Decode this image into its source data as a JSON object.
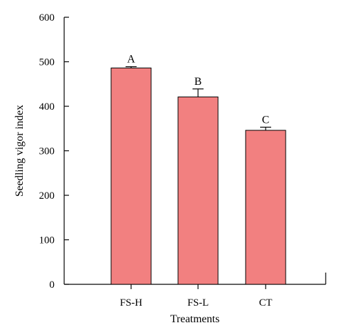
{
  "chart_data": {
    "type": "bar",
    "title": "",
    "xlabel": "Treatments",
    "ylabel": "Seedling vigor index",
    "ylim": [
      0,
      600
    ],
    "yticks": [
      0,
      100,
      200,
      300,
      400,
      500,
      600
    ],
    "categories": [
      "FS-H",
      "FS-L",
      "CT"
    ],
    "values": [
      486,
      421,
      346
    ],
    "errors": [
      3,
      18,
      7
    ],
    "significance_letters": [
      "A",
      "B",
      "C"
    ],
    "bar_color": "#f28080",
    "grid": false,
    "legend": "none"
  }
}
